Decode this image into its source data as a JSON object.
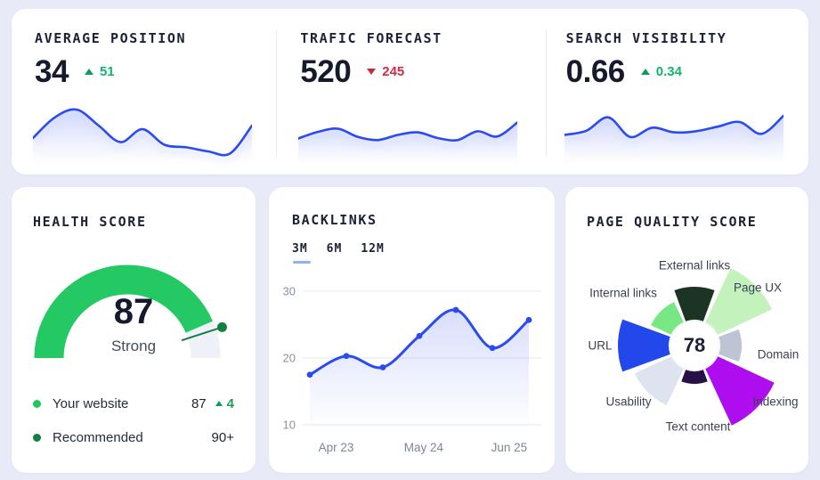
{
  "theme": {
    "background": "#e8ebf7",
    "card": "#ffffff",
    "accent_blue": "#2b4af0",
    "green": "#13b56b",
    "green_dark": "#157f43",
    "red": "#d42a47",
    "gauge_green": "#24c963",
    "track_gray": "#eef1f8",
    "grid_gray": "#e4e7ef",
    "axis_label_gray": "#8a91a5",
    "tab_underline": "#8fb3f0"
  },
  "kpis": [
    {
      "title": "AVERAGE POSITION",
      "value": "34",
      "delta": "51",
      "direction": "up"
    },
    {
      "title": "TRAFIC FORECAST",
      "value": "520",
      "delta": "245",
      "direction": "down"
    },
    {
      "title": "SEARCH VISIBILITY",
      "value": "0.66",
      "delta": "0.34",
      "direction": "up"
    }
  ],
  "health": {
    "title": "HEALTH SCORE",
    "score": "87",
    "score_label": "Strong",
    "legend": [
      {
        "label": "Your website",
        "value": "87",
        "delta": "4",
        "direction": "up",
        "dot_color": "#22c55e"
      },
      {
        "label": "Recommended",
        "value": "90+",
        "dot_color": "#157f43"
      }
    ]
  },
  "backlinks": {
    "title": "BACKLINKS",
    "tabs": [
      {
        "label": "3M",
        "active": true
      },
      {
        "label": "6M",
        "active": false
      },
      {
        "label": "12M",
        "active": false
      }
    ]
  },
  "page_quality": {
    "title": "PAGE QUALITY SCORE",
    "score": "78"
  },
  "chart_data": [
    {
      "id": "backlinks-trend",
      "type": "line",
      "title": "BACKLINKS",
      "x_tick_labels": [
        "Apr 23",
        "May 24",
        "Jun 25"
      ],
      "values": [
        17.5,
        20.3,
        18.6,
        23.3,
        27.2,
        21.5,
        25.7
      ],
      "ylim": [
        10,
        30
      ],
      "yticks": [
        30,
        20,
        10
      ],
      "grid": true,
      "line_color": "#2b4af0",
      "show_points": true,
      "legend_position": "none"
    },
    {
      "id": "page-quality-breakdown",
      "type": "pie",
      "variant": "rose",
      "center_value": "78",
      "categories": [
        "External links",
        "Page UX",
        "Domain",
        "Indexing",
        "Text content",
        "Usability",
        "URL",
        "Internal links"
      ],
      "values": [
        66,
        96,
        53,
        99,
        43,
        74,
        86,
        54
      ],
      "colors": [
        "#1c3423",
        "#c4f2bd",
        "#bdc4d3",
        "#ae0df0",
        "#261247",
        "#dee3f0",
        "#2247ea",
        "#77e884"
      ]
    },
    {
      "id": "health-gauge",
      "type": "gauge",
      "value": 87,
      "max": 100,
      "recommended": 90,
      "label": "Strong",
      "arc_color": "#24c963",
      "track_color": "#eef1f8",
      "marker_color": "#157f43"
    },
    {
      "id": "spark-average-position",
      "type": "area",
      "values": [
        38,
        78,
        93,
        62,
        30,
        55,
        25,
        20,
        12,
        8,
        62
      ]
    },
    {
      "id": "spark-traffic-forecast",
      "type": "area",
      "values": [
        37,
        50,
        56,
        40,
        34,
        44,
        49,
        38,
        34,
        51,
        41,
        68
      ]
    },
    {
      "id": "spark-search-visibility",
      "type": "area",
      "values": [
        44,
        52,
        78,
        40,
        58,
        49,
        51,
        60,
        69,
        46,
        81
      ]
    }
  ]
}
